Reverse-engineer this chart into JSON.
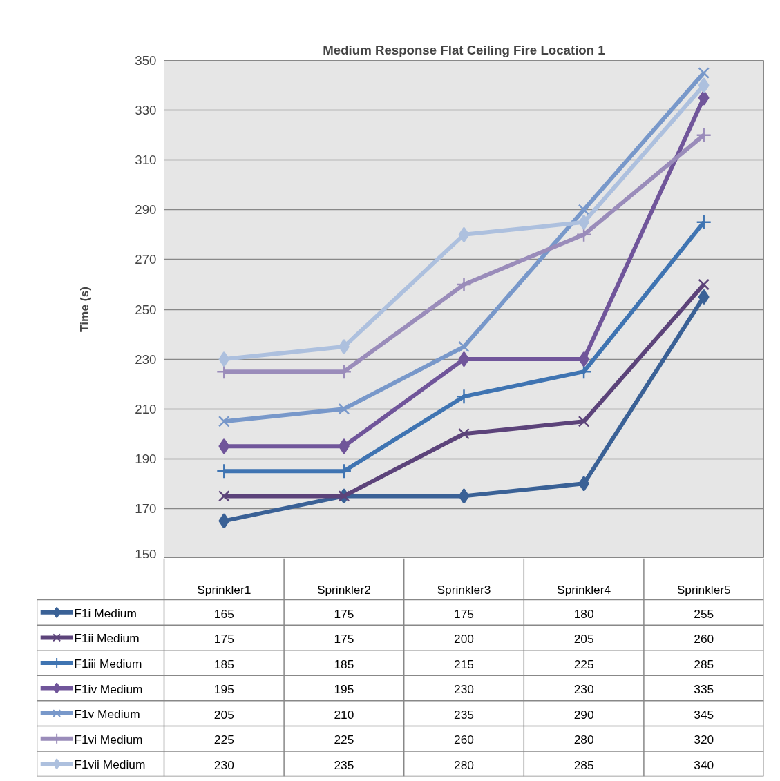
{
  "chart_data": {
    "type": "line",
    "title": "Medium Response Flat Ceiling Fire Location 1",
    "ylabel": "Time (s)",
    "categories": [
      "Sprinkler1",
      "Sprinkler2",
      "Sprinkler3",
      "Sprinkler4",
      "Sprinkler5"
    ],
    "ylim": [
      150,
      350
    ],
    "yticks": [
      150,
      170,
      190,
      210,
      230,
      250,
      270,
      290,
      310,
      330,
      350
    ],
    "grid": "y",
    "legend": "bottom",
    "data_labels": true,
    "line_style": "solid",
    "series": [
      {
        "name": "F1i Medium",
        "color": "#3a6196",
        "marker": "diamond",
        "values": [
          165,
          175,
          175,
          180,
          255
        ]
      },
      {
        "name": "F1ii Medium",
        "color": "#5c437a",
        "marker": "x",
        "values": [
          175,
          175,
          200,
          205,
          260
        ]
      },
      {
        "name": "F1iii Medium",
        "color": "#3f74b2",
        "marker": "cross",
        "values": [
          185,
          185,
          215,
          225,
          285
        ]
      },
      {
        "name": "F1iv Medium",
        "color": "#70559a",
        "marker": "diamond",
        "values": [
          195,
          195,
          230,
          230,
          335
        ]
      },
      {
        "name": "F1v Medium",
        "color": "#7898ca",
        "marker": "x",
        "values": [
          205,
          210,
          235,
          290,
          345
        ]
      },
      {
        "name": "F1vi Medium",
        "color": "#9a8cba",
        "marker": "cross",
        "values": [
          225,
          225,
          260,
          280,
          320
        ]
      },
      {
        "name": "F1vii Medium",
        "color": "#adc0de",
        "marker": "diamond",
        "values": [
          230,
          235,
          280,
          285,
          340
        ]
      }
    ]
  }
}
